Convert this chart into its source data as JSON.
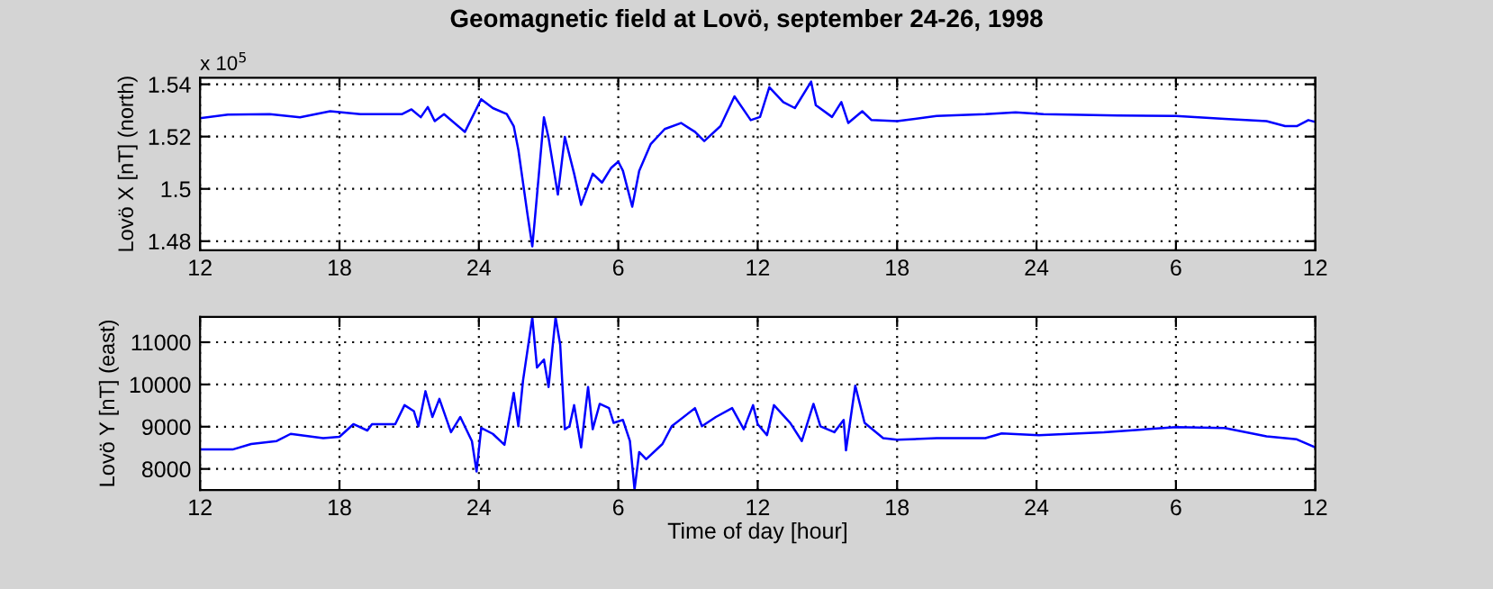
{
  "chart_data": [
    {
      "type": "line",
      "title": "Geomagnetic field at Lovö, september 24-26, 1998",
      "ylabel": "Lovö X [nT] (north)",
      "annotations": [
        "x 10$^{5}$"
      ],
      "x": [
        "1998-09-24T12:00",
        "1998-09-24T13:12",
        "1998-09-24T15:00",
        "1998-09-24T16:18",
        "1998-09-24T17:36",
        "1998-09-24T18:54",
        "1998-09-24T20:42",
        "1998-09-24T21:06",
        "1998-09-24T21:30",
        "1998-09-24T21:48",
        "1998-09-24T22:06",
        "1998-09-24T22:30",
        "1998-09-24T23:24",
        "1998-09-25T00:06",
        "1998-09-25T00:36",
        "1998-09-25T01:12",
        "1998-09-25T01:30",
        "1998-09-25T01:42",
        "1998-09-25T02:06",
        "1998-09-25T02:18",
        "1998-09-25T02:24",
        "1998-09-25T02:48",
        "1998-09-25T03:00",
        "1998-09-25T03:24",
        "1998-09-25T03:42",
        "1998-09-25T04:06",
        "1998-09-25T04:24",
        "1998-09-25T04:54",
        "1998-09-25T05:18",
        "1998-09-25T05:42",
        "1998-09-25T06:00",
        "1998-09-25T06:12",
        "1998-09-25T06:36",
        "1998-09-25T06:54",
        "1998-09-25T07:24",
        "1998-09-25T08:00",
        "1998-09-25T08:42",
        "1998-09-25T09:18",
        "1998-09-25T09:42",
        "1998-09-25T10:24",
        "1998-09-25T11:00",
        "1998-09-25T11:42",
        "1998-09-25T12:06",
        "1998-09-25T12:30",
        "1998-09-25T13:06",
        "1998-09-25T13:36",
        "1998-09-25T14:18",
        "1998-09-25T14:30",
        "1998-09-25T15:12",
        "1998-09-25T15:36",
        "1998-09-25T15:54",
        "1998-09-25T16:30",
        "1998-09-25T16:54",
        "1998-09-25T18:00",
        "1998-09-25T19:42",
        "1998-09-25T21:48",
        "1998-09-25T23:06",
        "1998-09-26T00:18",
        "1998-09-26T03:30",
        "1998-09-26T06:00",
        "1998-09-26T08:06",
        "1998-09-26T09:54",
        "1998-09-26T10:42",
        "1998-09-26T11:12",
        "1998-09-26T11:42",
        "1998-09-26T12:00"
      ],
      "series": [
        {
          "color": "#0000ff",
          "values": [
            1.527,
            1.5284,
            1.5286,
            1.5274,
            1.5297,
            1.5286,
            1.5286,
            1.5304,
            1.5274,
            1.5313,
            1.5259,
            1.5286,
            1.5218,
            1.5343,
            1.5309,
            1.5286,
            1.524,
            1.5149,
            1.4898,
            1.478,
            1.4875,
            1.5274,
            1.5195,
            1.4978,
            1.5199,
            1.5058,
            1.4939,
            1.5058,
            1.5024,
            1.5081,
            1.5104,
            1.5069,
            1.4932,
            1.5069,
            1.5172,
            1.5229,
            1.5252,
            1.5218,
            1.5183,
            1.524,
            1.5354,
            1.5263,
            1.5275,
            1.5389,
            1.5332,
            1.5309,
            1.541,
            1.532,
            1.5275,
            1.5332,
            1.5252,
            1.5297,
            1.5263,
            1.5259,
            1.5279,
            1.5286,
            1.5293,
            1.5286,
            1.5281,
            1.5279,
            1.5268,
            1.5259,
            1.524,
            1.524,
            1.5263,
            1.5256
          ]
        }
      ],
      "xlim": [
        "1998-09-24T12:00",
        "1998-09-26T12:00"
      ],
      "xticks": [
        {
          "value": "1998-09-24T12:00",
          "label": "12"
        },
        {
          "value": "1998-09-24T18:00",
          "label": "18"
        },
        {
          "value": "1998-09-25T00:00",
          "label": "24"
        },
        {
          "value": "1998-09-25T06:00",
          "label": "6"
        },
        {
          "value": "1998-09-25T12:00",
          "label": "12"
        },
        {
          "value": "1998-09-25T18:00",
          "label": "18"
        },
        {
          "value": "1998-09-26T00:00",
          "label": "24"
        },
        {
          "value": "1998-09-26T06:00",
          "label": "6"
        },
        {
          "value": "1998-09-26T12:00",
          "label": "12"
        }
      ],
      "ylim": [
        1.4765,
        1.5425
      ],
      "yticks": [
        1.48,
        1.5,
        1.52,
        1.54
      ],
      "grid": true,
      "line_style": "solid",
      "marker": "none"
    },
    {
      "type": "line",
      "ylabel": "Lovö Y [nT] (east)",
      "xlabel": "Time of day [hour]",
      "x": [
        "1998-09-24T12:00",
        "1998-09-24T13:24",
        "1998-09-24T14:12",
        "1998-09-24T15:18",
        "1998-09-24T15:54",
        "1998-09-24T17:18",
        "1998-09-24T18:00",
        "1998-09-24T18:36",
        "1998-09-24T19:12",
        "1998-09-24T19:24",
        "1998-09-24T20:24",
        "1998-09-24T20:48",
        "1998-09-24T21:12",
        "1998-09-24T21:24",
        "1998-09-24T21:42",
        "1998-09-24T22:00",
        "1998-09-24T22:18",
        "1998-09-24T22:48",
        "1998-09-24T23:12",
        "1998-09-24T23:42",
        "1998-09-24T23:54",
        "1998-09-25T00:06",
        "1998-09-25T00:36",
        "1998-09-25T01:06",
        "1998-09-25T01:30",
        "1998-09-25T01:42",
        "1998-09-25T01:54",
        "1998-09-25T02:18",
        "1998-09-25T02:30",
        "1998-09-25T02:48",
        "1998-09-25T03:00",
        "1998-09-25T03:18",
        "1998-09-25T03:30",
        "1998-09-25T03:42",
        "1998-09-25T03:54",
        "1998-09-25T04:06",
        "1998-09-25T04:24",
        "1998-09-25T04:42",
        "1998-09-25T04:54",
        "1998-09-25T05:12",
        "1998-09-25T05:36",
        "1998-09-25T05:48",
        "1998-09-25T06:12",
        "1998-09-25T06:30",
        "1998-09-25T06:42",
        "1998-09-25T06:54",
        "1998-09-25T07:12",
        "1998-09-25T07:54",
        "1998-09-25T08:18",
        "1998-09-25T09:18",
        "1998-09-25T09:36",
        "1998-09-25T10:12",
        "1998-09-25T10:54",
        "1998-09-25T11:24",
        "1998-09-25T11:48",
        "1998-09-25T12:00",
        "1998-09-25T12:24",
        "1998-09-25T12:42",
        "1998-09-25T13:24",
        "1998-09-25T13:54",
        "1998-09-25T14:24",
        "1998-09-25T14:42",
        "1998-09-25T15:18",
        "1998-09-25T15:42",
        "1998-09-25T15:48",
        "1998-09-25T16:12",
        "1998-09-25T16:36",
        "1998-09-25T17:24",
        "1998-09-25T18:00",
        "1998-09-25T19:42",
        "1998-09-25T21:48",
        "1998-09-25T22:30",
        "1998-09-26T00:06",
        "1998-09-26T02:54",
        "1998-09-26T06:00",
        "1998-09-26T08:06",
        "1998-09-26T09:54",
        "1998-09-26T11:12",
        "1998-09-26T12:00"
      ],
      "series": [
        {
          "color": "#0000ff",
          "values": [
            8460,
            8460,
            8590,
            8660,
            8830,
            8730,
            8760,
            9060,
            8910,
            9060,
            9060,
            9510,
            9370,
            9010,
            9840,
            9230,
            9660,
            8870,
            9230,
            8660,
            7940,
            8970,
            8830,
            8570,
            9800,
            9010,
            10090,
            11590,
            10400,
            10590,
            9940,
            11590,
            10940,
            8940,
            9010,
            9510,
            8510,
            9940,
            8940,
            9540,
            9440,
            9090,
            9160,
            8660,
            7510,
            8400,
            8230,
            8590,
            9010,
            9440,
            9010,
            9230,
            9440,
            8940,
            9510,
            9060,
            8800,
            9510,
            9090,
            8660,
            9540,
            9010,
            8870,
            9160,
            8440,
            9970,
            9090,
            8730,
            8690,
            8730,
            8730,
            8840,
            8800,
            8870,
            8990,
            8970,
            8770,
            8700,
            8510
          ]
        }
      ],
      "xlim": [
        "1998-09-24T12:00",
        "1998-09-26T12:00"
      ],
      "xticks": [
        {
          "value": "1998-09-24T12:00",
          "label": "12"
        },
        {
          "value": "1998-09-24T18:00",
          "label": "18"
        },
        {
          "value": "1998-09-25T00:00",
          "label": "24"
        },
        {
          "value": "1998-09-25T06:00",
          "label": "6"
        },
        {
          "value": "1998-09-25T12:00",
          "label": "12"
        },
        {
          "value": "1998-09-25T18:00",
          "label": "18"
        },
        {
          "value": "1998-09-26T00:00",
          "label": "24"
        },
        {
          "value": "1998-09-26T06:00",
          "label": "6"
        },
        {
          "value": "1998-09-26T12:00",
          "label": "12"
        }
      ],
      "ylim": [
        7500,
        11600
      ],
      "yticks": [
        8000,
        9000,
        10000,
        11000
      ],
      "grid": true,
      "line_style": "solid",
      "marker": "none"
    }
  ]
}
